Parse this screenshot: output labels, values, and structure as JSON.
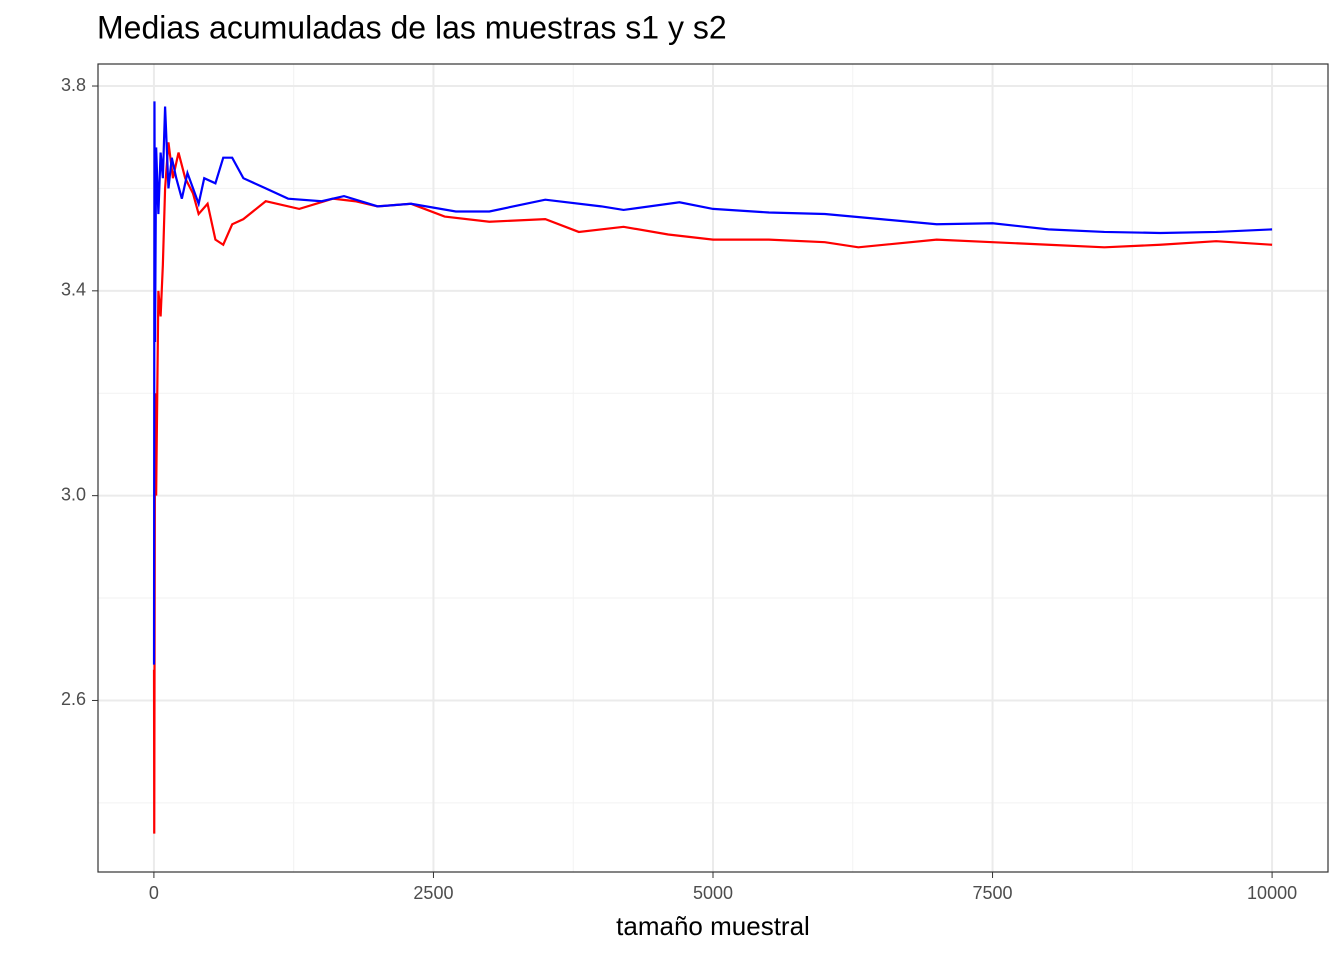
{
  "chart_data": {
    "type": "line",
    "title": "Medias acumuladas de las muestras s1 y s2",
    "xlabel": "tamaño muestral",
    "xlim": [
      -500,
      10500
    ],
    "xticks": [
      0,
      2500,
      5000,
      7500,
      10000
    ],
    "xminor": [
      1250,
      3750,
      6250,
      8750
    ],
    "ylim": [
      2.265,
      3.843
    ],
    "yticks": [
      2.6,
      {
        "value": 3,
        "label": "3.0"
      },
      3.4,
      3.8
    ],
    "yminor": [
      2.4,
      2.8,
      3.2,
      3.6
    ],
    "grid": true,
    "series": [
      {
        "color": "#ff0000",
        "x": [
          1,
          3,
          10,
          20,
          40,
          60,
          80,
          100,
          130,
          170,
          220,
          280,
          350,
          400,
          480,
          550,
          620,
          700,
          800,
          1000,
          1300,
          1600,
          1800,
          2000,
          2300,
          2600,
          3000,
          3500,
          3800,
          4200,
          4600,
          5000,
          5500,
          6000,
          6300,
          7000,
          7500,
          8000,
          8500,
          9000,
          9500,
          10000
        ],
        "values": [
          2.66,
          2.34,
          3.2,
          3.0,
          3.4,
          3.35,
          3.45,
          3.6,
          3.69,
          3.62,
          3.67,
          3.62,
          3.59,
          3.55,
          3.57,
          3.5,
          3.49,
          3.53,
          3.54,
          3.575,
          3.56,
          3.58,
          3.575,
          3.565,
          3.57,
          3.545,
          3.535,
          3.54,
          3.515,
          3.525,
          3.51,
          3.5,
          3.5,
          3.495,
          3.485,
          3.5,
          3.495,
          3.49,
          3.485,
          3.49,
          3.497,
          3.49
        ]
      },
      {
        "color": "#0000ff",
        "x": [
          1,
          5,
          10,
          20,
          40,
          60,
          80,
          100,
          130,
          160,
          200,
          250,
          300,
          350,
          400,
          450,
          550,
          620,
          700,
          800,
          1000,
          1200,
          1500,
          1700,
          2000,
          2300,
          2700,
          3000,
          3500,
          4000,
          4200,
          4700,
          5000,
          5500,
          6000,
          6500,
          7000,
          7500,
          8000,
          8500,
          9000,
          9500,
          10000
        ],
        "values": [
          2.67,
          3.77,
          3.3,
          3.68,
          3.55,
          3.67,
          3.62,
          3.76,
          3.6,
          3.66,
          3.62,
          3.58,
          3.63,
          3.6,
          3.57,
          3.62,
          3.61,
          3.66,
          3.66,
          3.62,
          3.6,
          3.58,
          3.575,
          3.585,
          3.565,
          3.57,
          3.555,
          3.555,
          3.578,
          3.565,
          3.558,
          3.573,
          3.56,
          3.553,
          3.55,
          3.54,
          3.53,
          3.532,
          3.52,
          3.515,
          3.513,
          3.515,
          3.52
        ]
      }
    ]
  }
}
